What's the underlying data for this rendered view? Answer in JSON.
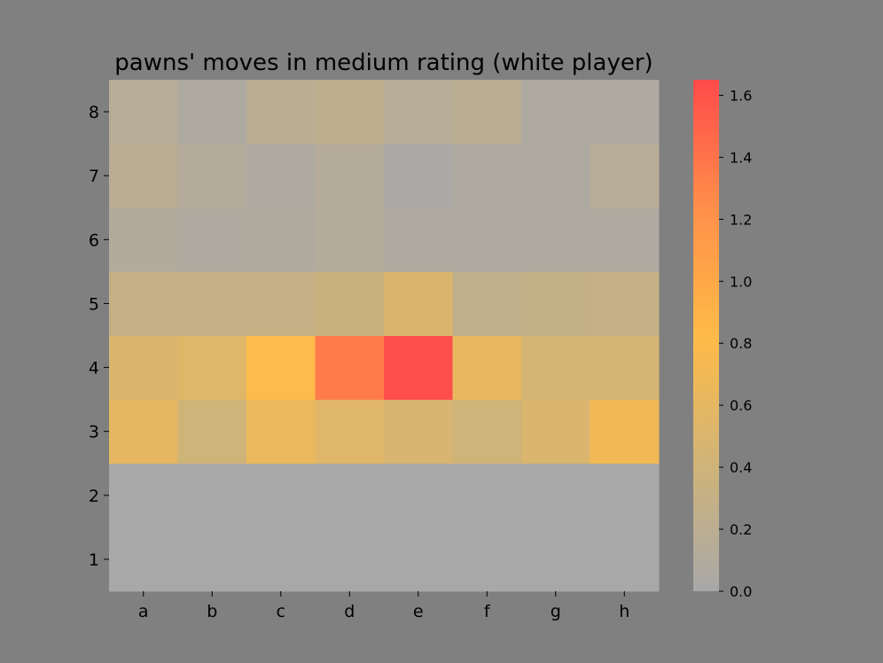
{
  "chart_data": {
    "type": "heatmap",
    "title": "pawns' moves in medium rating (white player)",
    "xlabel": "",
    "ylabel": "",
    "x_categories": [
      "a",
      "b",
      "c",
      "d",
      "e",
      "f",
      "g",
      "h"
    ],
    "y_categories": [
      "1",
      "2",
      "3",
      "4",
      "5",
      "6",
      "7",
      "8"
    ],
    "values": [
      [
        0.0,
        0.0,
        0.0,
        0.0,
        0.0,
        0.0,
        0.0,
        0.0
      ],
      [
        0.0,
        0.0,
        0.0,
        0.0,
        0.0,
        0.0,
        0.0,
        0.0
      ],
      [
        0.6,
        0.4,
        0.65,
        0.55,
        0.48,
        0.4,
        0.5,
        0.7
      ],
      [
        0.5,
        0.55,
        0.8,
        1.35,
        1.62,
        0.62,
        0.45,
        0.45
      ],
      [
        0.3,
        0.3,
        0.3,
        0.35,
        0.5,
        0.25,
        0.28,
        0.3
      ],
      [
        0.1,
        0.07,
        0.08,
        0.12,
        0.07,
        0.07,
        0.07,
        0.07
      ],
      [
        0.18,
        0.12,
        0.06,
        0.12,
        0.03,
        0.06,
        0.06,
        0.15
      ],
      [
        0.14,
        0.07,
        0.18,
        0.22,
        0.14,
        0.18,
        0.06,
        0.06
      ]
    ],
    "colorbar": {
      "min": 0.0,
      "max": 1.65,
      "ticks": [
        0.0,
        0.2,
        0.4,
        0.6,
        0.8,
        1.0,
        1.2,
        1.4,
        1.6
      ],
      "tick_labels": [
        "0.0",
        "0.2",
        "0.4",
        "0.6",
        "0.8",
        "1.0",
        "1.2",
        "1.4",
        "1.6"
      ],
      "colors": [
        "#a8a8a8",
        "#d0b478",
        "#ffbb47",
        "#ff8f4a",
        "#ff4a4a"
      ]
    },
    "grid": false
  }
}
